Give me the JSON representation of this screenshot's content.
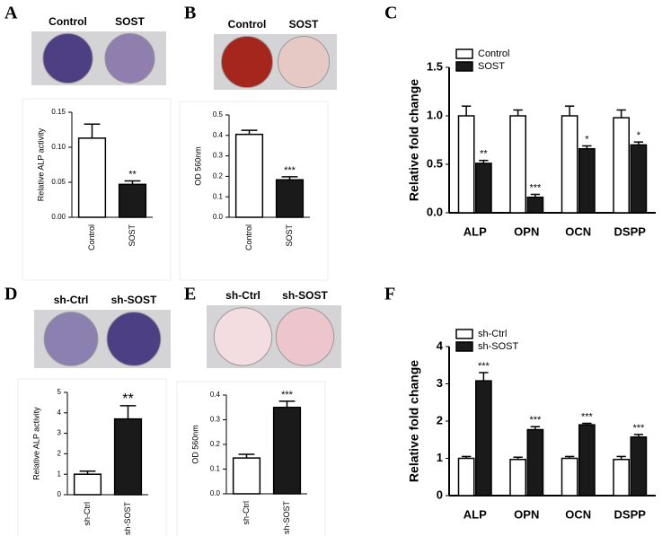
{
  "chart_data": [
    {
      "type": "bar",
      "panel": "A",
      "image_labels": [
        "Control",
        "SOST"
      ],
      "ylabel": "Relative ALP activity",
      "categories": [
        "Control",
        "SOST"
      ],
      "values": [
        0.113,
        0.047
      ],
      "errors": [
        0.02,
        0.005
      ],
      "colors": [
        "#ffffff",
        "#1a1a1a"
      ],
      "significance": [
        null,
        "**"
      ],
      "ylim": [
        0,
        0.15
      ],
      "yticks": [
        {
          "value": 0,
          "label": "0.00"
        },
        {
          "value": 0.05,
          "label": "0.05"
        },
        {
          "value": 0.1,
          "label": "0.10"
        },
        {
          "value": 0.15,
          "label": "0.15"
        }
      ]
    },
    {
      "type": "bar",
      "panel": "B",
      "image_labels": [
        "Control",
        "SOST"
      ],
      "ylabel": "OD 560nm",
      "categories": [
        "Control",
        "SOST"
      ],
      "values": [
        0.405,
        0.183
      ],
      "errors": [
        0.02,
        0.015
      ],
      "colors": [
        "#ffffff",
        "#1a1a1a"
      ],
      "significance": [
        null,
        "***"
      ],
      "ylim": [
        0,
        0.5
      ],
      "yticks": [
        {
          "value": 0,
          "label": "0.0"
        },
        0.1,
        0.2,
        0.3,
        0.4,
        0.5
      ]
    },
    {
      "type": "grouped_bar",
      "panel": "C",
      "ylabel": "Relative fold change",
      "legend": "top-left",
      "categories": [
        "ALP",
        "OPN",
        "OCN",
        "DSPP"
      ],
      "series": [
        {
          "name": "Control",
          "color": "#ffffff",
          "values": [
            1.0,
            1.0,
            1.0,
            0.98
          ],
          "errors": [
            0.1,
            0.06,
            0.1,
            0.08
          ],
          "significance": [
            null,
            null,
            null,
            null
          ]
        },
        {
          "name": "SOST",
          "color": "#1a1a1a",
          "values": [
            0.51,
            0.16,
            0.66,
            0.7
          ],
          "errors": [
            0.03,
            0.03,
            0.03,
            0.03
          ],
          "significance": [
            "**",
            "***",
            "*",
            "*"
          ]
        }
      ],
      "ylim": [
        0,
        1.5
      ],
      "yticks": [
        {
          "value": 0,
          "label": "0.0"
        },
        0.5,
        {
          "value": 1,
          "label": "1.0"
        },
        1.5
      ]
    },
    {
      "type": "bar",
      "panel": "D",
      "image_labels": [
        "sh-Ctrl",
        "sh-SOST"
      ],
      "ylabel": "Relative ALP activity",
      "categories": [
        "sh-Ctrl",
        "sh-SOST"
      ],
      "values": [
        1.0,
        3.7
      ],
      "errors": [
        0.15,
        0.65
      ],
      "colors": [
        "#ffffff",
        "#1a1a1a"
      ],
      "significance": [
        null,
        "**"
      ],
      "ylim": [
        0,
        5
      ],
      "yticks": [
        0,
        1,
        2,
        3,
        4,
        5
      ]
    },
    {
      "type": "bar",
      "panel": "E",
      "image_labels": [
        "sh-Ctrl",
        "sh-SOST"
      ],
      "ylabel": "OD 560nm",
      "categories": [
        "sh-Ctrl",
        "sh-SOST"
      ],
      "values": [
        0.145,
        0.35
      ],
      "errors": [
        0.015,
        0.025
      ],
      "colors": [
        "#ffffff",
        "#1a1a1a"
      ],
      "significance": [
        null,
        "***"
      ],
      "ylim": [
        0,
        0.4
      ],
      "yticks": [
        {
          "value": 0,
          "label": "0.0"
        },
        0.1,
        0.2,
        0.3,
        0.4
      ]
    },
    {
      "type": "grouped_bar",
      "panel": "F",
      "ylabel": "Relative fold change",
      "legend": "top-left",
      "categories": [
        "ALP",
        "OPN",
        "OCN",
        "DSPP"
      ],
      "series": [
        {
          "name": "sh-Ctrl",
          "color": "#ffffff",
          "values": [
            1.0,
            0.97,
            1.0,
            0.97
          ],
          "errors": [
            0.05,
            0.06,
            0.05,
            0.08
          ],
          "significance": [
            null,
            null,
            null,
            null
          ]
        },
        {
          "name": "sh-SOST",
          "color": "#1a1a1a",
          "values": [
            3.08,
            1.77,
            1.9,
            1.57
          ],
          "errors": [
            0.22,
            0.08,
            0.04,
            0.07
          ],
          "significance": [
            "***",
            "***",
            "***",
            "***"
          ]
        }
      ],
      "ylim": [
        0,
        4
      ],
      "yticks": [
        0,
        1,
        2,
        3,
        4
      ]
    }
  ]
}
